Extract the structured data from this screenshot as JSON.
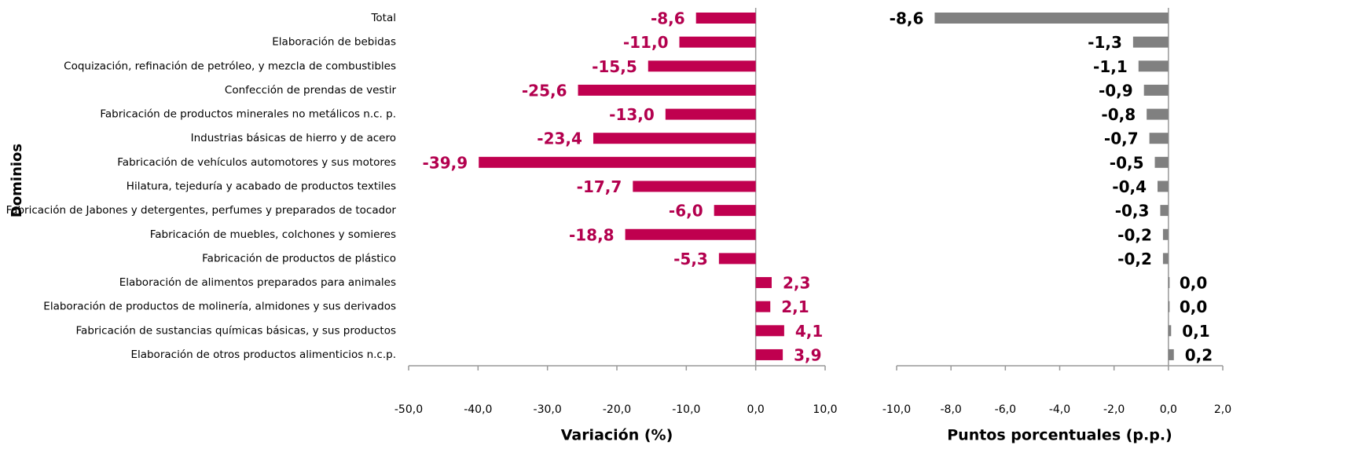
{
  "y_label": "Dominios",
  "chart_data": [
    {
      "type": "barh",
      "x_label": "Variación (%)",
      "color": "#c0004f",
      "label_color": "#b3004e",
      "categories": [
        "Total",
        "Elaboración de bebidas",
        "Coquización, refinación de petróleo, y mezcla de combustibles",
        "Confección de prendas de vestir",
        "Fabricación de productos minerales no metálicos n.c. p.",
        "Industrias básicas de hierro y de acero",
        "Fabricación de vehículos automotores y sus motores",
        "Hilatura, tejeduría y acabado de productos textiles",
        "Fabricación de Jabones y detergentes, perfumes y preparados de tocador",
        "Fabricación de muebles, colchones y somieres",
        "Fabricación de productos de plástico",
        "Elaboración de alimentos preparados para animales",
        "Elaboración de productos de molinería, almidones y sus derivados",
        "Fabricación de sustancias químicas básicas, y sus productos",
        "Elaboración de otros productos alimenticios n.c.p."
      ],
      "values": [
        -8.6,
        -11.0,
        -15.5,
        -25.6,
        -13.0,
        -23.4,
        -39.9,
        -17.7,
        -6.0,
        -18.8,
        -5.3,
        2.3,
        2.1,
        4.1,
        3.9
      ],
      "value_labels": [
        "-8,6",
        "-11,0",
        "-15,5",
        "-25,6",
        "-13,0",
        "-23,4",
        "-39,9",
        "-17,7",
        "-6,0",
        "-18,8",
        "-5,3",
        "2,3",
        "2,1",
        "4,1",
        "3,9"
      ],
      "xlim": [
        -50,
        10
      ],
      "xticks": [
        {
          "value": -50,
          "label": "-50,0"
        },
        {
          "value": -40,
          "label": "-40,0"
        },
        {
          "value": -30,
          "label": "-30,0"
        },
        {
          "value": -20,
          "label": "-20,0"
        },
        {
          "value": -10,
          "label": "-10,0"
        },
        {
          "value": 0,
          "label": "0,0"
        },
        {
          "value": 10,
          "label": "10,0"
        }
      ]
    },
    {
      "type": "barh",
      "x_label": "Puntos porcentuales (p.p.)",
      "color": "#808080",
      "label_color": "#000000",
      "values": [
        -8.6,
        -1.3,
        -1.1,
        -0.9,
        -0.8,
        -0.7,
        -0.5,
        -0.4,
        -0.3,
        -0.2,
        -0.2,
        0.0,
        0.0,
        0.1,
        0.2
      ],
      "value_labels": [
        "-8,6",
        "-1,3",
        "-1,1",
        "-0,9",
        "-0,8",
        "-0,7",
        "-0,5",
        "-0,4",
        "-0,3",
        "-0,2",
        "-0,2",
        "0,0",
        "0,0",
        "0,1",
        "0,2"
      ],
      "xlim": [
        -10,
        2
      ],
      "xticks": [
        {
          "value": -10,
          "label": "-10,0"
        },
        {
          "value": -8,
          "label": "-8,0"
        },
        {
          "value": -6,
          "label": "-6,0"
        },
        {
          "value": -4,
          "label": "-4,0"
        },
        {
          "value": -2,
          "label": "-2,0"
        },
        {
          "value": 0,
          "label": "0,0"
        },
        {
          "value": 2,
          "label": "2,0"
        }
      ]
    }
  ]
}
